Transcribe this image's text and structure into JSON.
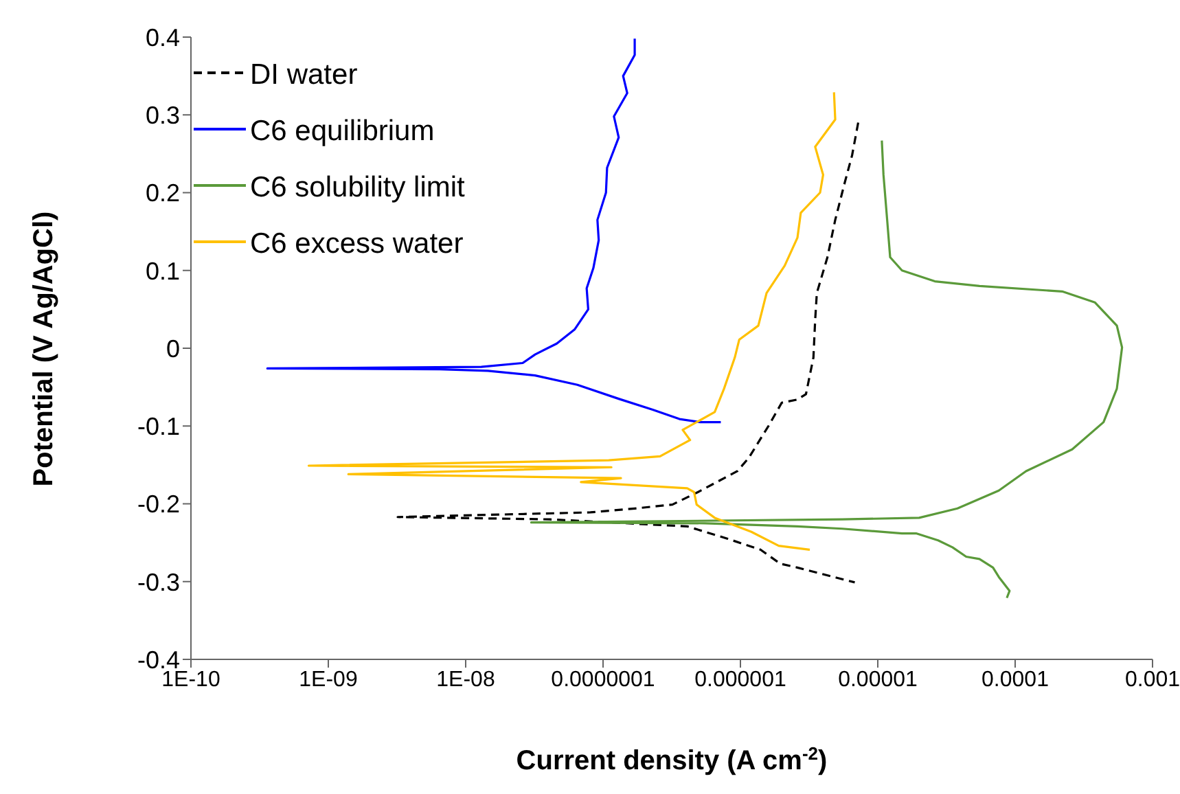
{
  "chart_data": {
    "type": "line",
    "xlabel": "Current density (A cm$^{-2}$)",
    "ylabel": "Potential (V Ag/AgCl)",
    "log": "x",
    "legend": "top left",
    "grid": false,
    "xlim": [
      1e-10,
      0.001
    ],
    "xticks": [
      {
        "value": 1e-10,
        "label": "1E-10"
      },
      {
        "value": 1e-09,
        "label": "1E-09"
      },
      {
        "value": 1e-08,
        "label": "1E-08"
      },
      {
        "value": 1e-07,
        "label": "0.0000001"
      },
      {
        "value": 1e-06,
        "label": "0.000001"
      },
      {
        "value": 1e-05,
        "label": "0.00001"
      },
      {
        "value": 0.0001,
        "label": "0.0001"
      },
      {
        "value": 0.001,
        "label": "0.001"
      }
    ],
    "ylim": [
      -0.4,
      0.4
    ],
    "yticks": [
      -0.4,
      -0.3,
      -0.2,
      -0.1,
      0,
      0.1,
      0.2,
      0.3,
      0.4
    ],
    "series": [
      {
        "name": "DI water",
        "color": "#000000",
        "line_style": "dashed",
        "x": [
          7.2e-06,
          6.5e-06,
          5.75e-06,
          4.9e-06,
          4.3e-06,
          3.6e-06,
          3.5e-06,
          3.4e-06,
          3e-06,
          2.6e-06,
          2e-06,
          1.6e-06,
          1.15e-06,
          9.5e-07,
          6.9e-07,
          4.9e-07,
          3.2e-07,
          1.7e-07,
          8.1e-08,
          3.2e-09,
          4.1e-08,
          4.1e-07,
          8.1e-07,
          1.4e-06,
          1.95e-06,
          2.6e-06,
          6.8e-06
        ],
        "values": [
          0.29,
          0.248,
          0.213,
          0.165,
          0.117,
          0.071,
          0.036,
          -0.012,
          -0.059,
          -0.066,
          -0.07,
          -0.1,
          -0.141,
          -0.158,
          -0.171,
          -0.185,
          -0.201,
          -0.206,
          -0.211,
          -0.217,
          -0.22,
          -0.229,
          -0.245,
          -0.259,
          -0.277,
          -0.282,
          -0.301
        ]
      },
      {
        "name": "C6 equilibrium",
        "color": "#0000ff",
        "line_style": "solid",
        "x": [
          1.7e-07,
          1.7e-07,
          1.4e-07,
          1.5e-07,
          1.2e-07,
          1.3e-07,
          1.07e-07,
          1.05e-07,
          9.1e-08,
          9.3e-08,
          8.5e-08,
          7.6e-08,
          7.8e-08,
          6.2e-08,
          4.6e-08,
          3.2e-08,
          2.6e-08,
          1.3e-08,
          3.6e-10,
          6.5e-09,
          1.45e-08,
          3.2e-08,
          6.5e-08,
          1.3e-07,
          2.3e-07,
          3.6e-07,
          5.1e-07,
          7.2e-07
        ],
        "values": [
          0.398,
          0.377,
          0.35,
          0.328,
          0.298,
          0.271,
          0.232,
          0.2,
          0.165,
          0.139,
          0.103,
          0.077,
          0.05,
          0.024,
          0.006,
          -0.008,
          -0.019,
          -0.024,
          -0.026,
          -0.027,
          -0.029,
          -0.035,
          -0.047,
          -0.065,
          -0.079,
          -0.091,
          -0.095,
          -0.095
        ]
      },
      {
        "name": "C6 solubility limit",
        "color": "#5b9a3a",
        "line_style": "solid",
        "x": [
          1.07e-05,
          1.1e-05,
          1.17e-05,
          1.23e-05,
          1.5e-05,
          2.6e-05,
          5.5e-05,
          0.00022,
          0.00038,
          0.00055,
          0.0006,
          0.00055,
          0.00044,
          0.00026,
          0.00012,
          7.6e-05,
          3.8e-05,
          2e-05,
          5.5e-06,
          3e-08,
          5.5e-07,
          2.6e-06,
          5.5e-06,
          1.5e-05,
          1.9e-05,
          2.75e-05,
          3.5e-05,
          4.4e-05,
          5.5e-05,
          6.9e-05,
          7.6e-05,
          9.1e-05,
          8.7e-05
        ],
        "values": [
          0.267,
          0.223,
          0.165,
          0.117,
          0.1,
          0.086,
          0.08,
          0.073,
          0.059,
          0.029,
          0.001,
          -0.052,
          -0.095,
          -0.13,
          -0.158,
          -0.183,
          -0.206,
          -0.218,
          -0.22,
          -0.224,
          -0.225,
          -0.229,
          -0.232,
          -0.238,
          -0.238,
          -0.247,
          -0.256,
          -0.268,
          -0.271,
          -0.282,
          -0.294,
          -0.312,
          -0.321
        ]
      },
      {
        "name": "C6 excess water",
        "color": "#ffc000",
        "line_style": "solid",
        "x": [
          4.8e-06,
          4.9e-06,
          3.5e-06,
          4e-06,
          3.8e-06,
          2.75e-06,
          2.6e-06,
          2.1e-06,
          1.55e-06,
          1.35e-06,
          9.8e-07,
          9.1e-07,
          7.6e-07,
          6.5e-07,
          3.8e-07,
          4.3e-07,
          2.6e-07,
          1.1e-07,
          7.2e-10,
          1.15e-07,
          1.4e-09,
          1.35e-07,
          6.9e-08,
          4.1e-07,
          4.6e-07,
          4.8e-07,
          6.5e-07,
          1.2e-06,
          1.9e-06,
          3.2e-06
        ],
        "values": [
          0.329,
          0.294,
          0.259,
          0.223,
          0.2,
          0.174,
          0.142,
          0.106,
          0.071,
          0.029,
          0.011,
          -0.012,
          -0.052,
          -0.082,
          -0.105,
          -0.118,
          -0.139,
          -0.144,
          -0.151,
          -0.153,
          -0.162,
          -0.167,
          -0.172,
          -0.18,
          -0.185,
          -0.201,
          -0.218,
          -0.236,
          -0.254,
          -0.259
        ]
      }
    ]
  }
}
